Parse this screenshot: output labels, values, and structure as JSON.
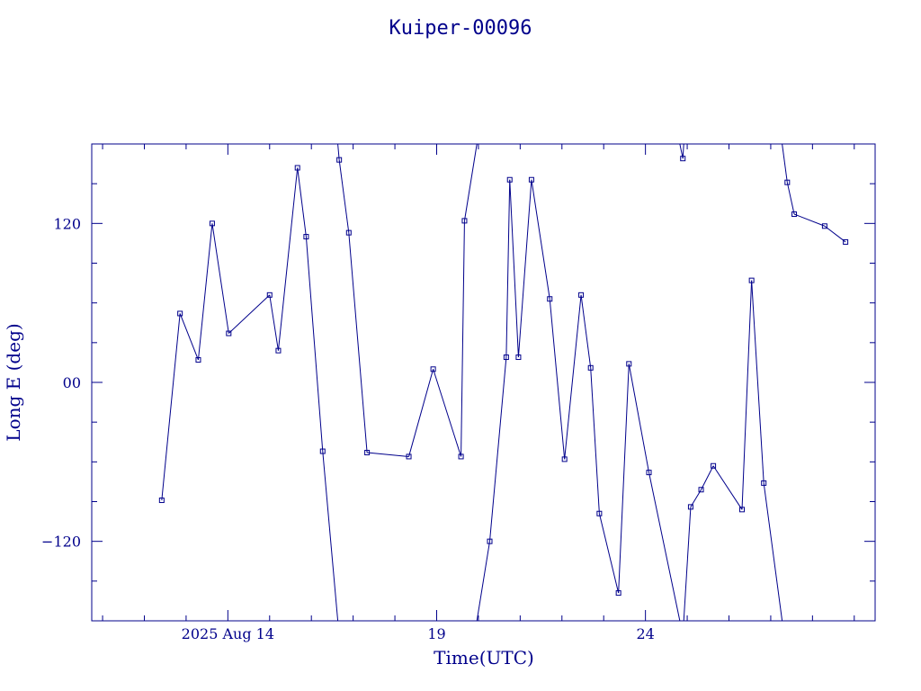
{
  "chart_data": {
    "type": "line",
    "title": "Kuiper-00096",
    "xlabel": "Time(UTC)",
    "ylabel": "Long E (deg)",
    "x_unit": "days",
    "xlim": [
      "2025-08-10T17:46",
      "2025-08-29T12:00"
    ],
    "ylim": [
      -180,
      180
    ],
    "x_ticks": [
      {
        "x": "2025-08-14T00:00",
        "label": "2025 Aug 14"
      },
      {
        "x": "2025-08-19T00:00",
        "label": "19"
      },
      {
        "x": "2025-08-24T00:00",
        "label": "24"
      }
    ],
    "y_ticks": [
      {
        "y": 120,
        "label": "120"
      },
      {
        "y": 0,
        "label": "00"
      },
      {
        "y": -120,
        "label": "−120"
      }
    ],
    "wrap": true,
    "series": [
      {
        "color": "#00008b",
        "points": [
          {
            "x": "2025-08-12T10:00",
            "y": -89
          },
          {
            "x": "2025-08-12T20:30",
            "y": 52
          },
          {
            "x": "2025-08-13T07:00",
            "y": 17
          },
          {
            "x": "2025-08-13T15:00",
            "y": 120
          },
          {
            "x": "2025-08-14T00:30",
            "y": 37
          },
          {
            "x": "2025-08-15T00:00",
            "y": 66
          },
          {
            "x": "2025-08-15T05:00",
            "y": 24
          },
          {
            "x": "2025-08-15T16:00",
            "y": 162
          },
          {
            "x": "2025-08-15T21:00",
            "y": 110
          },
          {
            "x": "2025-08-16T06:30",
            "y": -52
          },
          {
            "x": "2025-08-16T16:00",
            "y": 168
          },
          {
            "x": "2025-08-16T21:30",
            "y": 113
          },
          {
            "x": "2025-08-17T08:00",
            "y": -53
          },
          {
            "x": "2025-08-18T08:00",
            "y": -56
          },
          {
            "x": "2025-08-18T22:00",
            "y": 10
          },
          {
            "x": "2025-08-19T14:00",
            "y": -56
          },
          {
            "x": "2025-08-19T16:00",
            "y": 122
          },
          {
            "x": "2025-08-20T06:30",
            "y": -120
          },
          {
            "x": "2025-08-20T16:00",
            "y": 19
          },
          {
            "x": "2025-08-20T18:00",
            "y": 153
          },
          {
            "x": "2025-08-20T23:00",
            "y": 19
          },
          {
            "x": "2025-08-21T06:30",
            "y": 153
          },
          {
            "x": "2025-08-21T17:00",
            "y": 63
          },
          {
            "x": "2025-08-22T01:30",
            "y": -58
          },
          {
            "x": "2025-08-22T11:00",
            "y": 66
          },
          {
            "x": "2025-08-22T16:30",
            "y": 11
          },
          {
            "x": "2025-08-22T21:30",
            "y": -99
          },
          {
            "x": "2025-08-23T08:30",
            "y": -159
          },
          {
            "x": "2025-08-23T14:30",
            "y": 14
          },
          {
            "x": "2025-08-24T02:00",
            "y": -68
          },
          {
            "x": "2025-08-24T21:30",
            "y": 169
          },
          {
            "x": "2025-08-25T02:00",
            "y": -94
          },
          {
            "x": "2025-08-25T08:00",
            "y": -81
          },
          {
            "x": "2025-08-25T15:00",
            "y": -63
          },
          {
            "x": "2025-08-26T07:30",
            "y": -96
          },
          {
            "x": "2025-08-26T13:00",
            "y": 77
          },
          {
            "x": "2025-08-26T20:00",
            "y": -76
          },
          {
            "x": "2025-08-27T09:30",
            "y": 151
          },
          {
            "x": "2025-08-27T13:30",
            "y": 127
          },
          {
            "x": "2025-08-28T07:00",
            "y": 118
          },
          {
            "x": "2025-08-28T19:00",
            "y": 106
          }
        ]
      }
    ]
  }
}
